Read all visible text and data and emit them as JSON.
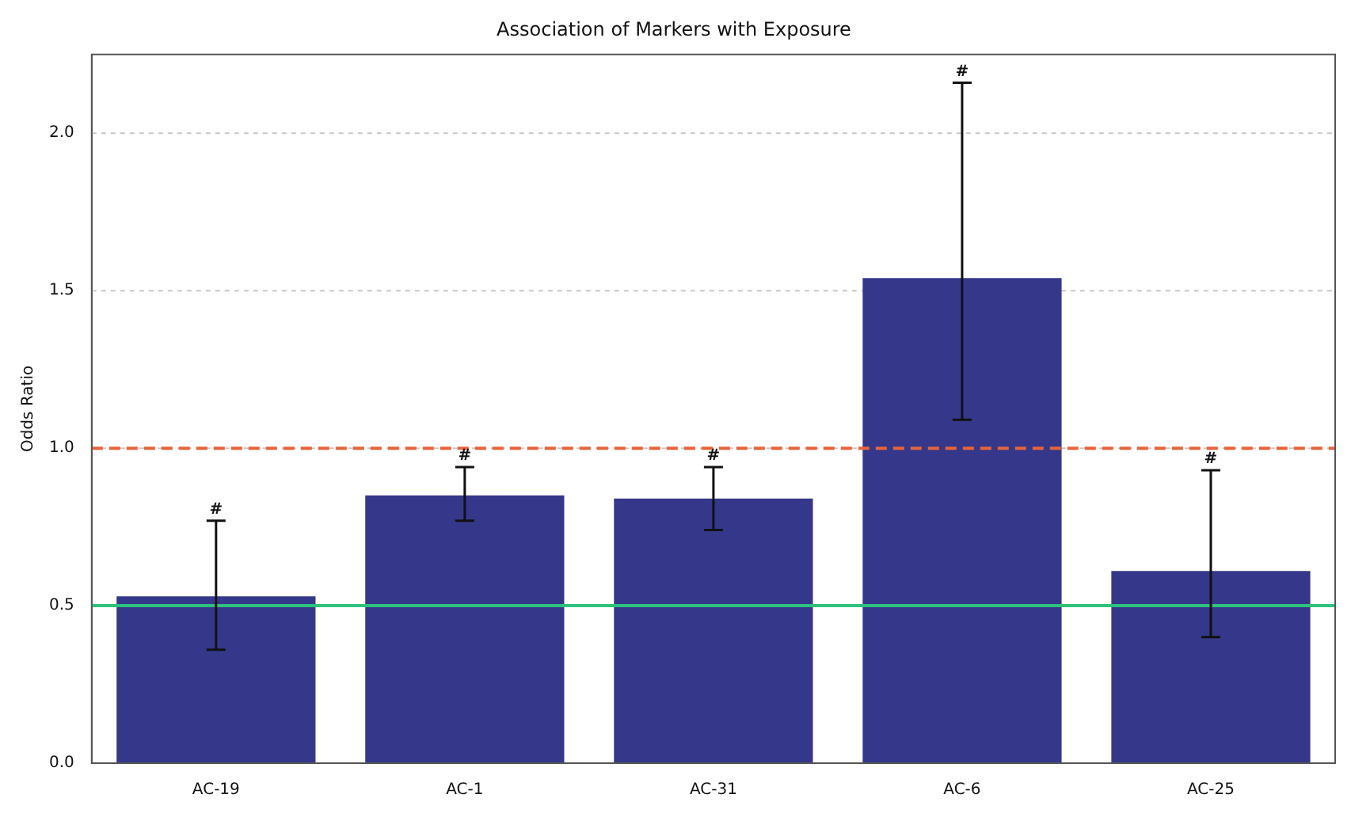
{
  "chart_data": {
    "type": "bar",
    "title": "Association of Markers with Exposure",
    "ylabel": "Odds Ratio",
    "categories": [
      "AC-19",
      "AC-1",
      "AC-31",
      "AC-6",
      "AC-25"
    ],
    "values": [
      0.53,
      0.85,
      0.84,
      1.54,
      0.61
    ],
    "color": "#35388a",
    "errors": [
      [
        0.36,
        0.77
      ],
      [
        0.77,
        0.94
      ],
      [
        0.74,
        0.94
      ],
      [
        1.09,
        2.16
      ],
      [
        0.4,
        0.93
      ]
    ],
    "ylim": [
      0,
      2.25
    ],
    "yticks": [
      {
        "value": 0,
        "label": "0.0"
      },
      {
        "value": 0.5,
        "label": "0.5"
      },
      {
        "value": 1,
        "label": "1.0"
      },
      {
        "value": 1.5,
        "label": "1.5"
      },
      {
        "value": 2,
        "label": "2.0"
      }
    ],
    "grid": "y",
    "ref_lines": [
      {
        "axis": "y",
        "value": 1,
        "color": "#e8633a",
        "line_style": "dashed"
      },
      {
        "axis": "y",
        "value": 0.5,
        "color": "#2ec27e",
        "line_style": "solid"
      }
    ],
    "annotations": [
      {
        "text": "#",
        "x": "AC-19",
        "y": 0.77
      },
      {
        "text": "#",
        "x": "AC-1",
        "y": 0.94
      },
      {
        "text": "#",
        "x": "AC-31",
        "y": 0.94
      },
      {
        "text": "#",
        "x": "AC-6",
        "y": 2.16
      },
      {
        "text": "#",
        "x": "AC-25",
        "y": 0.93
      }
    ]
  }
}
